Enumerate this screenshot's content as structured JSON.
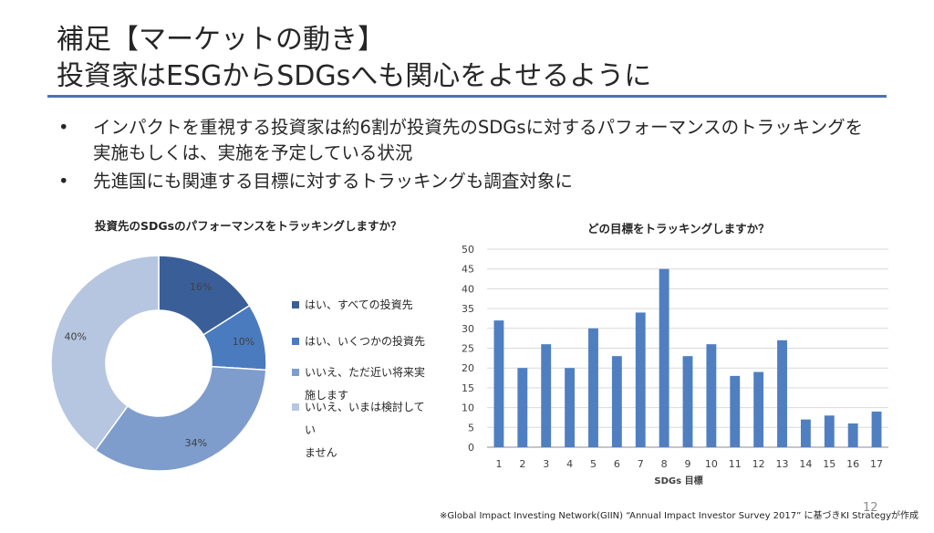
{
  "slide": {
    "title_line1": "補足【マーケットの動き】",
    "title_line2": "投資家はESGからSDGsへも関心をよせるように",
    "bullets": [
      "インパクトを重視する投資家は約6割が投資先のSDGsに対するパフォーマンスのトラッキングを実施もしくは、実施を予定している状況",
      "先進国にも関連する目標に対するトラッキングも調査対象に"
    ],
    "bullet_glyph": "•",
    "footnote": "※Global Impact Investing Network(GIIN) “Annual Impact Investor Survey 2017” に基づきKI Strategyが作成",
    "page_number": "12"
  },
  "chart_data": [
    {
      "type": "pie",
      "donut": true,
      "title": "投資先のSDGsのパフォーマンスをトラッキングしますか？",
      "categories": [
        "はい、すべての投資先",
        "はい、いくつかの投資先",
        "いいえ、ただ近い将来実施します",
        "いいえ、いまは検討していません"
      ],
      "legend_lines": [
        [
          "はい、すべての投資先"
        ],
        [
          "はい、いくつかの投資先"
        ],
        [
          "いいえ、ただ近い将来実",
          "施します"
        ],
        [
          "いいえ、いまは検討してい",
          "ません"
        ]
      ],
      "values": [
        16,
        10,
        34,
        40
      ],
      "labels": [
        "16%",
        "10%",
        "34%",
        "40%"
      ],
      "colors": [
        "#3a5f98",
        "#4b7bbf",
        "#7e9dcc",
        "#b6c6e0"
      ],
      "legend_position": "right"
    },
    {
      "type": "bar",
      "title": "どの目標をトラッキングしますか？",
      "xlabel": "SDGs 目標",
      "ylabel": "",
      "categories": [
        "1",
        "2",
        "3",
        "4",
        "5",
        "6",
        "7",
        "8",
        "9",
        "10",
        "11",
        "12",
        "13",
        "14",
        "15",
        "16",
        "17"
      ],
      "values": [
        32,
        20,
        26,
        20,
        30,
        23,
        34,
        45,
        23,
        26,
        18,
        19,
        27,
        7,
        8,
        6,
        9
      ],
      "ylim": [
        0,
        50
      ],
      "yticks": [
        "0",
        "5",
        "10",
        "15",
        "20",
        "25",
        "30",
        "35",
        "40",
        "45",
        "50"
      ],
      "grid": true,
      "bar_color": "#4f7fc0",
      "legend": "none"
    }
  ],
  "colors": {
    "accent_rule": "#4a72b2",
    "text": "#262626"
  }
}
